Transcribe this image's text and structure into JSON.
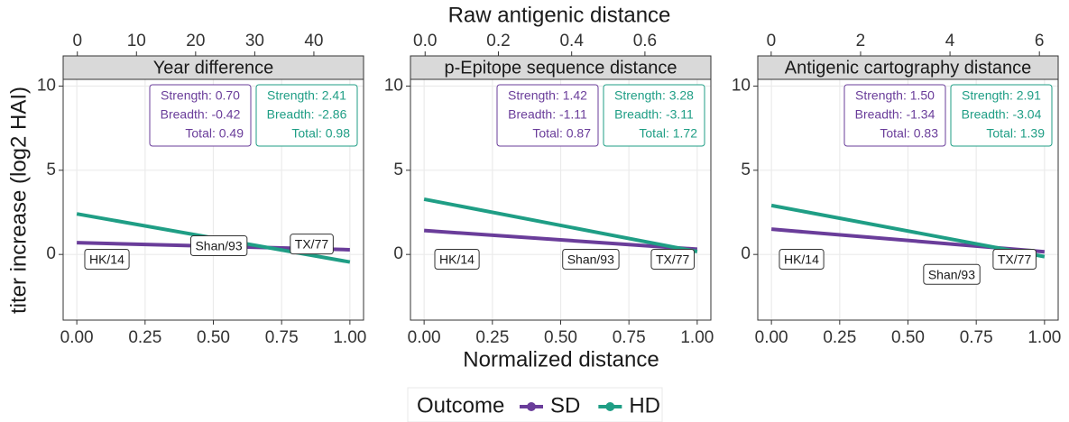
{
  "x_title": "Normalized distance",
  "x2_title": "Raw antigenic distance",
  "y_title": "titer increase (log2 HAI)",
  "legend": {
    "title": "Outcome",
    "entries": [
      {
        "name": "SD",
        "color": "#6a3d9a"
      },
      {
        "name": "HD",
        "color": "#1f9e85"
      }
    ]
  },
  "chart_data": [
    {
      "type": "line",
      "title": "Year difference",
      "xlim": [
        -0.05,
        1.05
      ],
      "xticks": [
        {
          "value": 0,
          "label": "0.00"
        },
        0.25,
        {
          "value": 0.5,
          "label": "0.50"
        },
        0.75,
        {
          "value": 1,
          "label": "1.00"
        }
      ],
      "x2lim": [
        -2.4,
        48.4
      ],
      "x2ticks": [
        0,
        10,
        20,
        30,
        40
      ],
      "ylim": [
        -3.9,
        10.4
      ],
      "yticks": [
        0,
        5,
        10
      ],
      "grid": true,
      "series": [
        {
          "x": [
            0,
            1
          ],
          "values": [
            0.7,
            0.28
          ],
          "annotation": [
            "Strength: 0.70",
            "Breadth: -0.42",
            "Total: 0.49"
          ]
        },
        {
          "x": [
            0,
            1
          ],
          "values": [
            2.41,
            -0.45
          ],
          "annotation": [
            "Strength: 2.41",
            "Breadth: -2.86",
            "Total: 0.98"
          ]
        }
      ],
      "labels": [
        {
          "text": "HK/14",
          "x": 0.11,
          "y": -0.3
        },
        {
          "text": "Shan/93",
          "x": 0.52,
          "y": 0.5
        },
        {
          "text": "TX/77",
          "x": 0.86,
          "y": 0.6
        }
      ]
    },
    {
      "type": "line",
      "title": "p-Epitope sequence distance",
      "xlim": [
        -0.05,
        1.05
      ],
      "xticks": [
        {
          "value": 0,
          "label": "0.00"
        },
        0.25,
        {
          "value": 0.5,
          "label": "0.50"
        },
        0.75,
        {
          "value": 1,
          "label": "1.00"
        }
      ],
      "x2lim": [
        -0.04,
        0.78
      ],
      "x2ticks": [
        {
          "value": 0,
          "label": "0.0"
        },
        0.2,
        0.4,
        0.6
      ],
      "ylim": [
        -3.9,
        10.4
      ],
      "yticks": [
        0,
        5,
        10
      ],
      "grid": true,
      "series": [
        {
          "x": [
            0,
            1
          ],
          "values": [
            1.42,
            0.31
          ],
          "annotation": [
            "Strength: 1.42",
            "Breadth: -1.11",
            "Total: 0.87"
          ]
        },
        {
          "x": [
            0,
            1
          ],
          "values": [
            3.28,
            0.17
          ],
          "annotation": [
            "Strength: 3.28",
            "Breadth: -3.11",
            "Total: 1.72"
          ]
        }
      ],
      "labels": [
        {
          "text": "HK/14",
          "x": 0.12,
          "y": -0.3
        },
        {
          "text": "Shan/93",
          "x": 0.61,
          "y": -0.3
        },
        {
          "text": "TX/77",
          "x": 0.91,
          "y": -0.3
        }
      ]
    },
    {
      "type": "line",
      "title": "Antigenic cartography distance",
      "xlim": [
        -0.05,
        1.05
      ],
      "xticks": [
        {
          "value": 0,
          "label": "0.00"
        },
        0.25,
        {
          "value": 0.5,
          "label": "0.50"
        },
        0.75,
        {
          "value": 1,
          "label": "1.00"
        }
      ],
      "x2lim": [
        -0.3,
        6.42
      ],
      "x2ticks": [
        0,
        2,
        4,
        6
      ],
      "ylim": [
        -3.9,
        10.4
      ],
      "yticks": [
        0,
        5,
        10
      ],
      "grid": true,
      "series": [
        {
          "x": [
            0,
            1
          ],
          "values": [
            1.5,
            0.16
          ],
          "annotation": [
            "Strength: 1.50",
            "Breadth: -1.34",
            "Total: 0.83"
          ]
        },
        {
          "x": [
            0,
            1
          ],
          "values": [
            2.91,
            -0.13
          ],
          "annotation": [
            "Strength: 2.91",
            "Breadth: -3.04",
            "Total: 1.39"
          ]
        }
      ],
      "labels": [
        {
          "text": "HK/14",
          "x": 0.11,
          "y": -0.3
        },
        {
          "text": "Shan/93",
          "x": 0.66,
          "y": -1.2
        },
        {
          "text": "TX/77",
          "x": 0.89,
          "y": -0.3
        }
      ]
    }
  ]
}
